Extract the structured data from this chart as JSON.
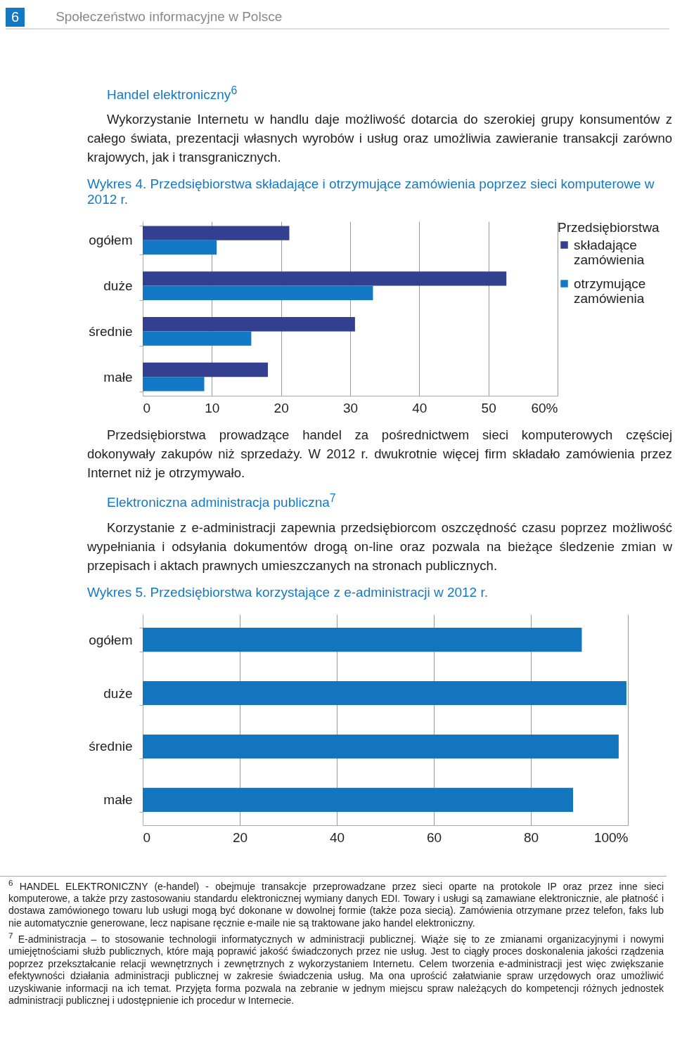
{
  "chart_data": [
    {
      "type": "bar",
      "orientation": "horizontal",
      "title": "Wykres 4. Przedsiębiorstwa składające i otrzymujące zamówienia poprzez sieci komputerowe w 2012 r.",
      "legend_title": "Przedsiębiorstwa",
      "categories": [
        "ogółem",
        "duże",
        "średnie",
        "małe"
      ],
      "series": [
        {
          "name": "składające zamówienia",
          "color": "#333f8f",
          "values": [
            21.2,
            52.6,
            30.7,
            18.1
          ]
        },
        {
          "name": "otrzymujące zamówienia",
          "color": "#1479c4",
          "values": [
            10.7,
            33.3,
            15.7,
            8.9
          ]
        }
      ],
      "xlim": [
        0,
        60
      ],
      "xticks": [
        0,
        10,
        20,
        30,
        40,
        50,
        {
          "value": 60,
          "label": "60%"
        }
      ],
      "grid": "x",
      "legend": "top right",
      "annotations": [
        "6",
        "Społeczeństwo informacyjne w Polsce",
        "Handel elektroniczny$^{6}$",
        "Wykorzystanie Internetu w handlu daje możliwość dotarcia do szerokiej grupy konsumentów z całego świata, prezentacji własnych wyrobów i usług oraz umożliwia zawieranie transakcji zarówno krajowych, jak i transgranicznych.",
        "Przedsiębiorstwa prowadzące handel za pośrednictwem sieci komputerowych częściej dokonywały zakupów niż sprzedaży. W 2012 r. dwukrotnie więcej firm składało zamówienia przez Internet niż je otrzymywało."
      ]
    },
    {
      "type": "bar",
      "orientation": "horizontal",
      "title": "Wykres 5. Przedsiębiorstwa korzystające z e-administracji w 2012 r.",
      "categories": [
        "ogółem",
        "duże",
        "średnie",
        "małe"
      ],
      "series": [
        {
          "color": "#1275bd",
          "values": [
            90.5,
            99.7,
            98.1,
            88.7
          ]
        }
      ],
      "xlim": [
        0,
        100
      ],
      "xticks": [
        0,
        20,
        40,
        60,
        80,
        {
          "value": 100,
          "label": "100%"
        }
      ],
      "grid": "x",
      "annotations": [
        "Elektroniczna administracja publiczna$^{7}$",
        "Korzystanie z e-administracji zapewnia przedsiębiorcom oszczędność czasu poprzez możliwość wypełniania i odsyłania dokumentów drogą on-line oraz pozwala na bieżące śledzenie zmian w przepisach i aktach prawnych umieszczanych na stronach publicznych.",
        "$^{6}$ HANDEL ELEKTRONICZNY (e-handel) - obejmuje transakcje przeprowadzane przez sieci oparte na protokole IP oraz przez inne sieci komputerowe, a także przy zastosowaniu standardu elektronicznej wymiany danych EDI. Towary i usługi są zamawiane elektronicznie, ale płatność i dostawa zamówionego towaru lub usługi mogą być dokonane w dowolnej formie (także poza siecią). Zamówienia otrzymane przez telefon, faks lub nie automatycznie generowane, lecz napisane ręcznie e-maile nie są traktowane jako handel elektroniczny.",
        "$^{7}$ E-administracja – to stosowanie technologii informatycznych w administracji publicznej. Wiąże się to ze zmianami organizacyjnymi i nowymi umiejętnościami służb publicznych, które mają poprawić jakość świadczonych przez nie usług. Jest to ciągły proces doskonalenia jakości rządzenia poprzez przekształcanie relacji wewnętrznych i zewnętrznych z wykorzystaniem Internetu. Celem tworzenia e-administracji jest więc zwiększanie efektywności działania administracji publicznej w zakresie świadczenia usług. Ma ona uprościć załatwianie spraw urzędowych oraz umożliwić uzyskiwanie informacji na ich temat. Przyjęta forma pozwala na zebranie w jednym miejscu spraw należących do kompetencji różnych jednostek administracji publicznej i udostępnienie ich procedur w Internecie."
      ]
    }
  ]
}
